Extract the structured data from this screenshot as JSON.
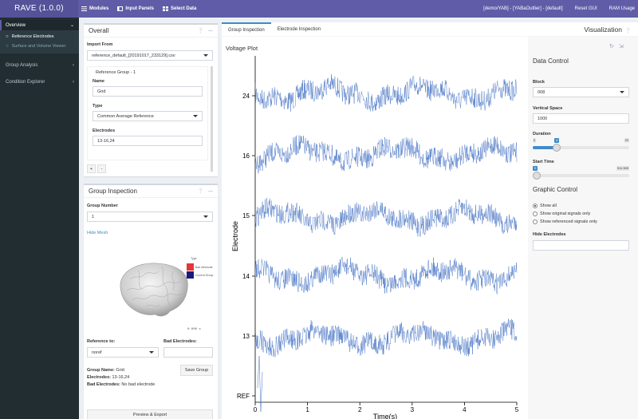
{
  "app": {
    "title": "RAVE (1.0.0)"
  },
  "topnav": {
    "modules": "Modules",
    "input_panels": "Input Panels",
    "select_data": "Select Data",
    "project": "[demo/YAB] - [YABaOutlier] - [default]",
    "reset_gui": "Reset GUI",
    "ram_usage": "RAM Usage"
  },
  "sidebar": {
    "overview": "Overview",
    "reference_electrodes": "Reference Electrodes",
    "surface_volume": "Surface and Volume Viewer",
    "group_analysis": "Group Analysis",
    "condition_explorer": "Condition Explorer"
  },
  "overall": {
    "title": "Overall",
    "import_label": "Import From",
    "import_value": "reference_default_[20191017_233129].csv",
    "group_header": "Reference Group - 1",
    "name_label": "Name",
    "name_value": "Grid",
    "type_label": "Type",
    "type_value": "Common Average Reference",
    "electrodes_label": "Electrodes",
    "electrodes_value": "13-16,24",
    "add_btn": "+",
    "remove_btn": "-"
  },
  "group_inspection": {
    "title": "Group Inspection",
    "group_number_label": "Group Number",
    "group_number_value": "1",
    "hide_mesh": "Hide Mesh",
    "legend_title": "Type",
    "legend_bad": "Bad electrode",
    "legend_current": "Current Group",
    "scale": "0.000 s",
    "reference_to_label": "Reference to:",
    "reference_to_value": "noref",
    "bad_electrodes_label": "Bad Electrodes:",
    "bad_electrodes_value": "",
    "save_group": "Save Group",
    "summary_group_name_label": "Group Name:",
    "summary_group_name": "Grid",
    "summary_electrodes_label": "Electrodes:",
    "summary_electrodes": "13-16,24",
    "summary_bad_label": "Bad Electrodes:",
    "summary_bad": "No bad electrode",
    "preview_export": "Preview & Export"
  },
  "main": {
    "tabs": [
      "Group Inspection",
      "Electrode Inspection"
    ],
    "active_tab": 0,
    "visualization": "Visualization",
    "plot_title": "Voltage Plot"
  },
  "data_control": {
    "title": "Data Control",
    "block_label": "Block",
    "block_value": "008",
    "vertical_space_label": "Vertical Space",
    "vertical_space_value": "1000",
    "duration_label": "Duration",
    "duration_min": "0",
    "duration_max": "20",
    "duration_value": "5",
    "duration_fraction": 0.25,
    "start_time_label": "Start Time",
    "start_time_min": "0",
    "start_time_max": "311.905",
    "start_time_value": "0",
    "graphic_title": "Graphic Control",
    "radio_options": [
      "Show all",
      "Show original signals only",
      "Show referenced signals only"
    ],
    "radio_selected": 0,
    "hide_electrodes_label": "Hide Electrodes",
    "hide_electrodes_value": ""
  },
  "colors": {
    "header": "#605ca8",
    "sidebar": "#222d32",
    "signal": "#4472c4",
    "bad": "#e8343a",
    "current": "#1a1a7a"
  },
  "chart_data": {
    "type": "line",
    "title": "",
    "xlabel": "Time(s)",
    "ylabel": "Electrode",
    "x_ticks": [
      "0",
      "1",
      "2",
      "3",
      "4",
      "5"
    ],
    "xlim": [
      0,
      5
    ],
    "y_ticks": [
      "24",
      "16",
      "15",
      "14",
      "13",
      "REF"
    ],
    "series": [
      {
        "name": "24",
        "values": []
      },
      {
        "name": "16",
        "values": []
      },
      {
        "name": "15",
        "values": []
      },
      {
        "name": "14",
        "values": []
      },
      {
        "name": "13",
        "values": []
      },
      {
        "name": "REF",
        "values": []
      }
    ]
  }
}
